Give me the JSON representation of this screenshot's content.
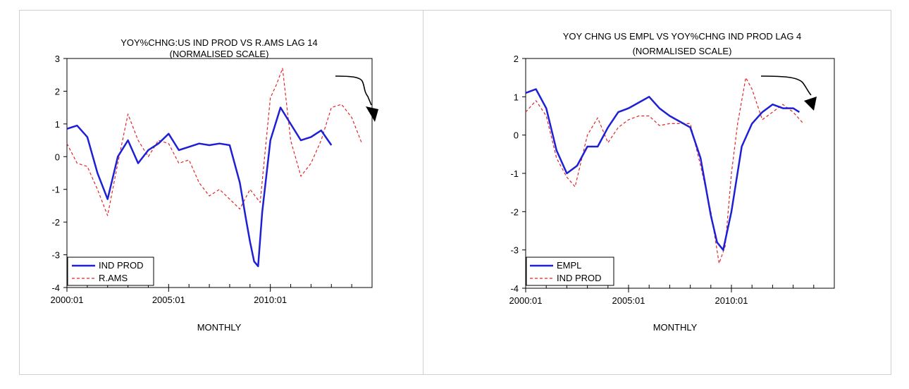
{
  "chart_data": [
    {
      "type": "line",
      "title": "YOY%CHNG:US IND PROD VS R.AMS LAG 14",
      "subtitle": "(NORMALISED SCALE)",
      "xlabel": "MONTHLY",
      "ylabel": "",
      "ylim": [
        -4,
        3
      ],
      "yticks": [
        -4,
        -3,
        -2,
        -1,
        0,
        1,
        2,
        3
      ],
      "xlim": [
        2000.0,
        2015.0
      ],
      "xticks": [
        {
          "value": 2000.0,
          "label": "2000:01"
        },
        {
          "value": 2005.0,
          "label": "2005:01"
        },
        {
          "value": 2010.0,
          "label": "2010:01"
        }
      ],
      "legend_position": "bottom-left",
      "series": [
        {
          "name": "IND PROD",
          "style": "solid",
          "color": "#1f1fd6",
          "x": [
            2000.0,
            2000.5,
            2001.0,
            2001.5,
            2002.0,
            2002.5,
            2003.0,
            2003.5,
            2004.0,
            2004.5,
            2005.0,
            2005.5,
            2006.0,
            2006.5,
            2007.0,
            2007.5,
            2008.0,
            2008.5,
            2008.8,
            2009.0,
            2009.2,
            2009.4,
            2009.6,
            2010.0,
            2010.5,
            2011.0,
            2011.5,
            2012.0,
            2012.5,
            2013.0
          ],
          "y": [
            0.85,
            0.95,
            0.6,
            -0.5,
            -1.3,
            0.0,
            0.5,
            -0.2,
            0.2,
            0.4,
            0.7,
            0.2,
            0.3,
            0.4,
            0.35,
            0.4,
            0.35,
            -0.8,
            -1.9,
            -2.6,
            -3.2,
            -3.35,
            -1.7,
            0.5,
            1.5,
            1.0,
            0.5,
            0.6,
            0.8,
            0.35
          ]
        },
        {
          "name": "R.AMS",
          "style": "dashed",
          "color": "#e0262a",
          "x": [
            2000.0,
            2000.5,
            2001.0,
            2001.5,
            2002.0,
            2002.5,
            2003.0,
            2003.5,
            2004.0,
            2004.5,
            2005.0,
            2005.5,
            2006.0,
            2006.5,
            2007.0,
            2007.5,
            2008.0,
            2008.5,
            2009.0,
            2009.5,
            2010.0,
            2010.3,
            2010.6,
            2011.0,
            2011.5,
            2012.0,
            2012.5,
            2013.0,
            2013.5,
            2014.0,
            2014.5
          ],
          "y": [
            0.4,
            -0.2,
            -0.3,
            -1.0,
            -1.8,
            -0.2,
            1.3,
            0.5,
            0.0,
            0.5,
            0.4,
            -0.2,
            -0.1,
            -0.8,
            -1.2,
            -1.0,
            -1.3,
            -1.6,
            -1.0,
            -1.4,
            1.8,
            2.2,
            2.7,
            0.5,
            -0.6,
            -0.2,
            0.5,
            1.5,
            1.6,
            1.2,
            0.4
          ]
        }
      ]
    },
    {
      "type": "line",
      "title": "YOY CHNG US EMPL VS YOY%CHNG IND PROD LAG 4",
      "subtitle": "(NORMALISED SCALE)",
      "xlabel": "MONTHLY",
      "ylabel": "",
      "ylim": [
        -4,
        2
      ],
      "yticks": [
        -4,
        -3,
        -2,
        -1,
        0,
        1,
        2
      ],
      "xlim": [
        2000.0,
        2015.0
      ],
      "xticks": [
        {
          "value": 2000.0,
          "label": "2000:01"
        },
        {
          "value": 2005.0,
          "label": "2005:01"
        },
        {
          "value": 2010.0,
          "label": "2010:01"
        }
      ],
      "legend_position": "bottom-left",
      "series": [
        {
          "name": "EMPL",
          "style": "solid",
          "color": "#1f1fd6",
          "x": [
            2000.0,
            2000.5,
            2001.0,
            2001.5,
            2002.0,
            2002.5,
            2003.0,
            2003.5,
            2004.0,
            2004.5,
            2005.0,
            2005.5,
            2006.0,
            2006.5,
            2007.0,
            2007.5,
            2008.0,
            2008.5,
            2009.0,
            2009.3,
            2009.6,
            2010.0,
            2010.5,
            2011.0,
            2011.5,
            2012.0,
            2012.5,
            2013.0,
            2013.3
          ],
          "y": [
            1.1,
            1.2,
            0.7,
            -0.4,
            -1.0,
            -0.8,
            -0.3,
            -0.3,
            0.2,
            0.6,
            0.7,
            0.85,
            1.0,
            0.7,
            0.5,
            0.35,
            0.2,
            -0.6,
            -2.1,
            -2.8,
            -3.0,
            -2.0,
            -0.3,
            0.3,
            0.6,
            0.8,
            0.7,
            0.7,
            0.6
          ]
        },
        {
          "name": "IND PROD",
          "style": "dashed",
          "color": "#e0262a",
          "x": [
            2000.0,
            2000.5,
            2001.0,
            2001.5,
            2002.0,
            2002.4,
            2003.0,
            2003.5,
            2004.0,
            2004.5,
            2005.0,
            2005.5,
            2006.0,
            2006.5,
            2007.0,
            2007.5,
            2008.0,
            2008.5,
            2009.0,
            2009.4,
            2009.7,
            2010.0,
            2010.3,
            2010.7,
            2011.0,
            2011.5,
            2012.0,
            2012.5,
            2013.0,
            2013.5
          ],
          "y": [
            0.6,
            0.9,
            0.5,
            -0.6,
            -1.1,
            -1.35,
            0.0,
            0.45,
            -0.2,
            0.2,
            0.4,
            0.5,
            0.5,
            0.25,
            0.3,
            0.3,
            0.3,
            -0.8,
            -2.0,
            -3.35,
            -2.9,
            -1.0,
            0.3,
            1.5,
            1.2,
            0.4,
            0.6,
            0.8,
            0.6,
            0.3
          ]
        }
      ]
    }
  ]
}
